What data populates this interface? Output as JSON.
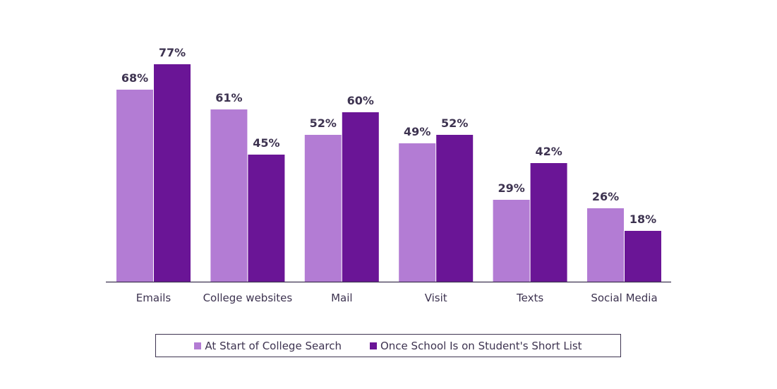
{
  "chart_data": {
    "type": "bar",
    "title": "",
    "xlabel": "",
    "ylabel": "",
    "ylim": [
      0,
      100
    ],
    "categories": [
      "Emails",
      "College websites",
      "Mail",
      "Visit",
      "Texts",
      "Social Media"
    ],
    "series": [
      {
        "name": "At Start of College Search",
        "color": "#b37cd4",
        "values": [
          68,
          61,
          52,
          49,
          29,
          26
        ],
        "labels": [
          "68%",
          "61%",
          "52%",
          "49%",
          "29%",
          "26%"
        ]
      },
      {
        "name": "Once School Is on Student's Short List",
        "color": "#6a1596",
        "values": [
          77,
          45,
          60,
          52,
          42,
          18
        ],
        "labels": [
          "77%",
          "45%",
          "60%",
          "52%",
          "42%",
          "18%"
        ]
      }
    ],
    "legend_position": "bottom"
  }
}
